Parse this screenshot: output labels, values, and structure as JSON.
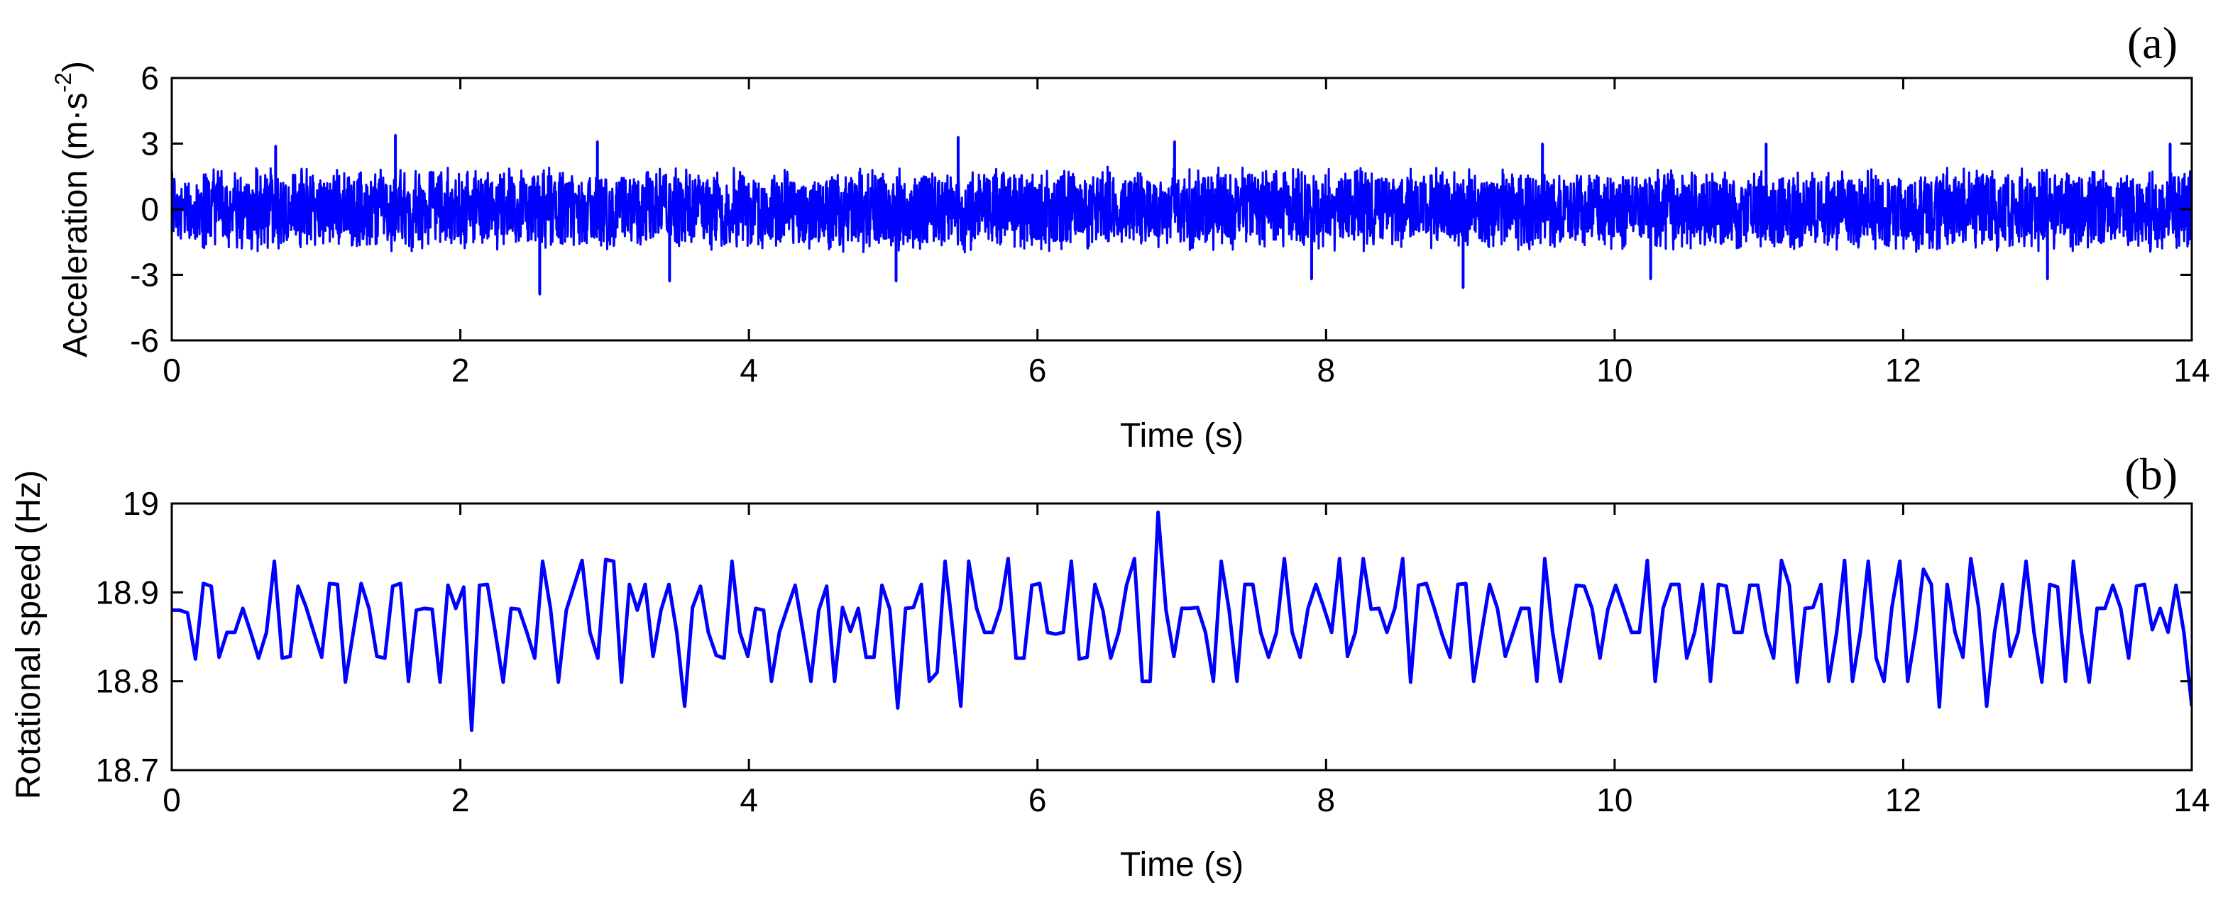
{
  "chart_data": [
    {
      "panel_tag": "(a)",
      "type": "line",
      "xlabel": "Time (s)",
      "ylabel_base": "Acceleration (m·s",
      "ylabel_exp": "-2",
      "ylabel_close": ")",
      "xlim": [
        0,
        14
      ],
      "ylim": [
        -6,
        6
      ],
      "xticks": [
        "0",
        "2",
        "4",
        "6",
        "8",
        "10",
        "12",
        "14"
      ],
      "yticks": [
        "-6",
        "-3",
        "0",
        "3",
        "6"
      ],
      "series_color": "#0000ff",
      "signal": {
        "kind": "vibration noise",
        "duration_s": 14,
        "typical_amplitude": 2.0,
        "max_value": 3.4,
        "min_value": -3.9
      },
      "notable_spikes": [
        {
          "x": 0.72,
          "y": 2.9
        },
        {
          "x": 1.55,
          "y": 3.4
        },
        {
          "x": 2.55,
          "y": -3.9
        },
        {
          "x": 2.95,
          "y": 3.1
        },
        {
          "x": 3.45,
          "y": -3.3
        },
        {
          "x": 5.02,
          "y": -3.3
        },
        {
          "x": 5.45,
          "y": 3.3
        },
        {
          "x": 6.95,
          "y": 3.1
        },
        {
          "x": 7.9,
          "y": -3.2
        },
        {
          "x": 8.95,
          "y": -3.6
        },
        {
          "x": 9.5,
          "y": 3.0
        },
        {
          "x": 10.25,
          "y": -3.2
        },
        {
          "x": 11.05,
          "y": 3.0
        },
        {
          "x": 13.0,
          "y": -3.2
        },
        {
          "x": 13.85,
          "y": 3.0
        }
      ]
    },
    {
      "panel_tag": "(b)",
      "type": "line",
      "xlabel": "Time (s)",
      "ylabel": "Rotational speed (Hz)",
      "xlim": [
        0,
        14
      ],
      "ylim": [
        18.7,
        19
      ],
      "xticks": [
        "0",
        "2",
        "4",
        "6",
        "8",
        "10",
        "12",
        "14"
      ],
      "yticks": [
        "18.7",
        "18.8",
        "18.9",
        "19"
      ],
      "series_color": "#0000ff",
      "x_step": 0.0667,
      "y": [
        18.88,
        18.88,
        18.877,
        18.825,
        18.91,
        18.907,
        18.827,
        18.855,
        18.855,
        18.882,
        18.855,
        18.826,
        18.855,
        18.935,
        18.826,
        18.828,
        18.907,
        18.884,
        18.855,
        18.827,
        18.91,
        18.909,
        18.799,
        18.855,
        18.91,
        18.882,
        18.828,
        18.826,
        18.907,
        18.91,
        18.8,
        18.88,
        18.882,
        18.881,
        18.799,
        18.908,
        18.882,
        18.906,
        18.745,
        18.908,
        18.909,
        18.855,
        18.799,
        18.882,
        18.881,
        18.855,
        18.826,
        18.935,
        18.882,
        18.799,
        18.88,
        18.908,
        18.936,
        18.855,
        18.826,
        18.937,
        18.935,
        18.799,
        18.909,
        18.88,
        18.909,
        18.828,
        18.88,
        18.909,
        18.855,
        18.772,
        18.883,
        18.907,
        18.855,
        18.829,
        18.826,
        18.935,
        18.855,
        18.828,
        18.882,
        18.88,
        18.8,
        18.855,
        18.882,
        18.908,
        18.855,
        18.8,
        18.88,
        18.907,
        18.8,
        18.883,
        18.856,
        18.882,
        18.827,
        18.827,
        18.908,
        18.881,
        18.77,
        18.882,
        18.883,
        18.909,
        18.8,
        18.81,
        18.935,
        18.855,
        18.772,
        18.935,
        18.882,
        18.855,
        18.855,
        18.882,
        18.938,
        18.826,
        18.826,
        18.908,
        18.91,
        18.855,
        18.853,
        18.855,
        18.935,
        18.825,
        18.827,
        18.909,
        18.88,
        18.826,
        18.855,
        18.908,
        18.938,
        18.8,
        18.8,
        18.99,
        18.88,
        18.828,
        18.882,
        18.882,
        18.883,
        18.855,
        18.8,
        18.935,
        18.88,
        18.8,
        18.909,
        18.909,
        18.855,
        18.827,
        18.855,
        18.938,
        18.855,
        18.827,
        18.882,
        18.909,
        18.883,
        18.855,
        18.938,
        18.828,
        18.855,
        18.938,
        18.881,
        18.882,
        18.855,
        18.882,
        18.938,
        18.799,
        18.908,
        18.91,
        18.882,
        18.852,
        18.827,
        18.909,
        18.91,
        18.8,
        18.855,
        18.909,
        18.882,
        18.828,
        18.855,
        18.882,
        18.882,
        18.8,
        18.938,
        18.855,
        18.8,
        18.855,
        18.908,
        18.907,
        18.882,
        18.826,
        18.881,
        18.908,
        18.882,
        18.855,
        18.855,
        18.936,
        18.8,
        18.882,
        18.909,
        18.909,
        18.826,
        18.855,
        18.909,
        18.8,
        18.909,
        18.907,
        18.855,
        18.855,
        18.908,
        18.908,
        18.855,
        18.826,
        18.936,
        18.908,
        18.799,
        18.882,
        18.883,
        18.909,
        18.8,
        18.855,
        18.936,
        18.8,
        18.855,
        18.935,
        18.826,
        18.8,
        18.883,
        18.935,
        18.8,
        18.855,
        18.926,
        18.909,
        18.771,
        18.909,
        18.855,
        18.827,
        18.938,
        18.882,
        18.772,
        18.855,
        18.909,
        18.828,
        18.855,
        18.935,
        18.855,
        18.799,
        18.909,
        18.906,
        18.8,
        18.935,
        18.855,
        18.799,
        18.882,
        18.882,
        18.908,
        18.882,
        18.826,
        18.907,
        18.909,
        18.858,
        18.882,
        18.855,
        18.908,
        18.855,
        18.772
      ]
    }
  ]
}
